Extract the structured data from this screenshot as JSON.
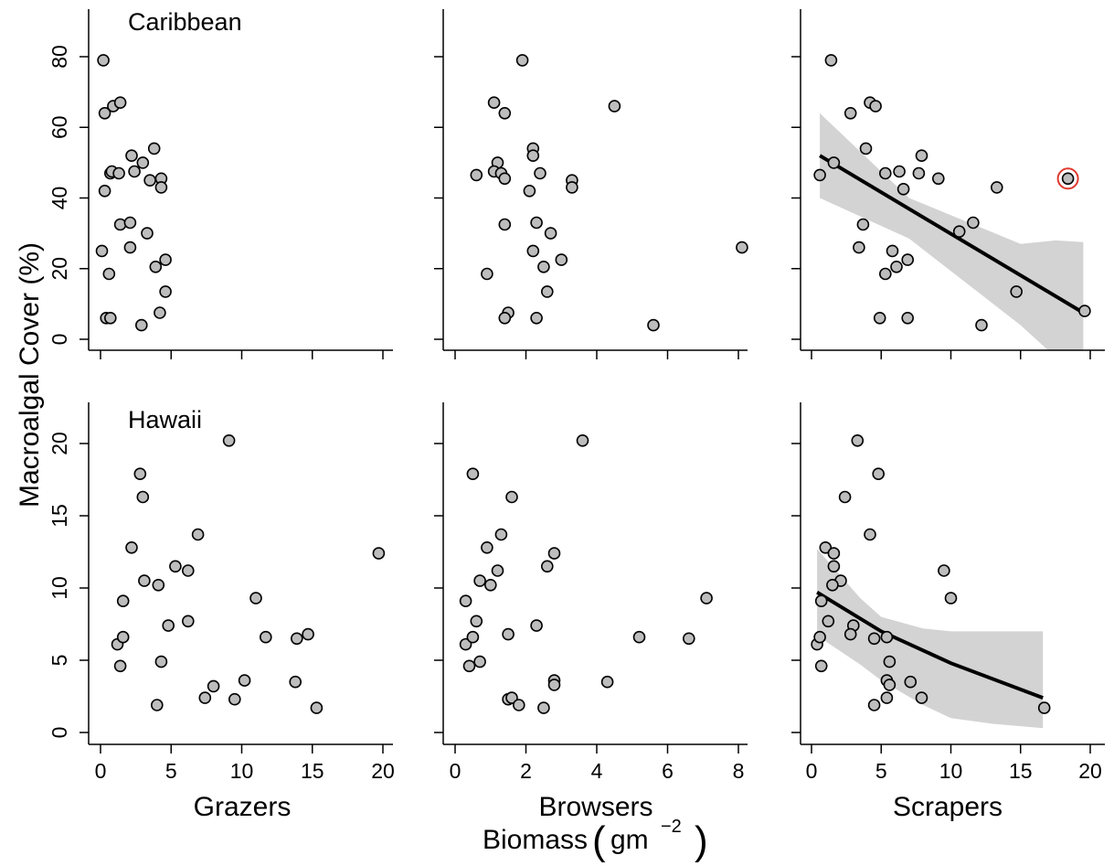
{
  "figure": {
    "ylabel": "Macroalgal Cover (%)",
    "xlabel_main": "Biomass",
    "xlabel_unit": "gm",
    "xlabel_unit_exp": "−2",
    "x_titles": [
      "Grazers",
      "Browsers",
      "Scrapers"
    ],
    "regions": [
      "Caribbean",
      "Hawaii"
    ]
  },
  "chart_data": [
    {
      "type": "scatter",
      "region": "Caribbean",
      "xlabel": "Grazers",
      "xlim": [
        0,
        20
      ],
      "ylim": [
        0,
        80
      ],
      "xticks": [
        0,
        5,
        10,
        15,
        20
      ],
      "yticks": [
        0,
        20,
        40,
        60,
        80
      ],
      "points": [
        [
          0.2,
          79
        ],
        [
          0.3,
          64
        ],
        [
          0.9,
          66
        ],
        [
          1.4,
          67
        ],
        [
          0.3,
          42
        ],
        [
          0.7,
          47
        ],
        [
          0.8,
          47.5
        ],
        [
          1.3,
          47
        ],
        [
          2.2,
          52
        ],
        [
          2.4,
          47.5
        ],
        [
          3.0,
          50
        ],
        [
          3.5,
          45
        ],
        [
          3.8,
          54
        ],
        [
          4.3,
          45.5
        ],
        [
          4.3,
          43
        ],
        [
          1.4,
          32.5
        ],
        [
          2.1,
          33
        ],
        [
          3.3,
          30
        ],
        [
          0.1,
          25
        ],
        [
          2.1,
          26
        ],
        [
          3.9,
          20.5
        ],
        [
          4.6,
          22.5
        ],
        [
          0.6,
          18.5
        ],
        [
          4.6,
          13.5
        ],
        [
          0.4,
          6
        ],
        [
          0.7,
          6
        ],
        [
          4.2,
          7.5
        ],
        [
          2.9,
          4
        ]
      ],
      "trend": null
    },
    {
      "type": "scatter",
      "region": "Caribbean",
      "xlabel": "Browsers",
      "xlim": [
        0,
        8
      ],
      "ylim": [
        0,
        80
      ],
      "xticks": [
        0,
        2,
        4,
        6,
        8
      ],
      "yticks": [
        0,
        20,
        40,
        60,
        80
      ],
      "points": [
        [
          1.9,
          79
        ],
        [
          4.5,
          66
        ],
        [
          1.1,
          67
        ],
        [
          1.4,
          64
        ],
        [
          2.2,
          54
        ],
        [
          2.2,
          52
        ],
        [
          1.2,
          50
        ],
        [
          1.1,
          47.5
        ],
        [
          0.6,
          46.5
        ],
        [
          1.3,
          47
        ],
        [
          2.4,
          47
        ],
        [
          1.4,
          45.5
        ],
        [
          3.3,
          45
        ],
        [
          3.3,
          43
        ],
        [
          2.1,
          42
        ],
        [
          1.4,
          32.5
        ],
        [
          2.3,
          33
        ],
        [
          2.7,
          30
        ],
        [
          2.2,
          25
        ],
        [
          3.0,
          22.5
        ],
        [
          2.5,
          20.5
        ],
        [
          0.9,
          18.5
        ],
        [
          2.6,
          13.5
        ],
        [
          1.5,
          7.5
        ],
        [
          1.4,
          6
        ],
        [
          2.3,
          6
        ],
        [
          5.6,
          4
        ],
        [
          8.1,
          26
        ]
      ],
      "trend": null
    },
    {
      "type": "scatter",
      "region": "Caribbean",
      "xlabel": "Scrapers",
      "xlim": [
        0,
        20
      ],
      "ylim": [
        0,
        80
      ],
      "xticks": [
        0,
        5,
        10,
        15,
        20
      ],
      "yticks": [
        0,
        20,
        40,
        60,
        80
      ],
      "points": [
        [
          1.4,
          79
        ],
        [
          2.8,
          64
        ],
        [
          4.2,
          67
        ],
        [
          4.6,
          66
        ],
        [
          3.9,
          54
        ],
        [
          7.9,
          52
        ],
        [
          1.6,
          50
        ],
        [
          0.6,
          46.5
        ],
        [
          5.3,
          47
        ],
        [
          6.3,
          47.5
        ],
        [
          7.7,
          47
        ],
        [
          9.1,
          45.5
        ],
        [
          6.6,
          42.5
        ],
        [
          13.3,
          43
        ],
        [
          3.7,
          32.5
        ],
        [
          11.6,
          33
        ],
        [
          10.6,
          30.5
        ],
        [
          3.4,
          26
        ],
        [
          5.8,
          25
        ],
        [
          6.9,
          22.5
        ],
        [
          6.1,
          20.5
        ],
        [
          5.3,
          18.5
        ],
        [
          14.7,
          13.5
        ],
        [
          4.9,
          6
        ],
        [
          6.9,
          6
        ],
        [
          12.2,
          4
        ],
        [
          19.6,
          8
        ]
      ],
      "highlight": [
        18.4,
        45.5
      ],
      "trend": {
        "x": [
          0.6,
          19.5
        ],
        "y": [
          52,
          7.5
        ]
      },
      "band": {
        "x": [
          0.6,
          7,
          15,
          17.5,
          19.5
        ],
        "lower": [
          40,
          28.5,
          4,
          -5,
          -5
        ],
        "upper": [
          64,
          40,
          27,
          28,
          27.5
        ]
      }
    },
    {
      "type": "scatter",
      "region": "Hawaii",
      "xlabel": "Grazers",
      "xlim": [
        0,
        20
      ],
      "ylim": [
        0,
        20
      ],
      "xticks": [
        0,
        5,
        10,
        15,
        20
      ],
      "yticks": [
        0,
        5,
        10,
        15,
        20
      ],
      "points": [
        [
          9.1,
          20.2
        ],
        [
          2.8,
          17.9
        ],
        [
          3.0,
          16.3
        ],
        [
          6.9,
          13.7
        ],
        [
          2.2,
          12.8
        ],
        [
          19.7,
          12.4
        ],
        [
          5.3,
          11.5
        ],
        [
          6.2,
          11.2
        ],
        [
          3.1,
          10.5
        ],
        [
          4.1,
          10.2
        ],
        [
          11.0,
          9.3
        ],
        [
          1.6,
          9.1
        ],
        [
          6.2,
          7.7
        ],
        [
          4.8,
          7.4
        ],
        [
          1.2,
          6.1
        ],
        [
          1.6,
          6.6
        ],
        [
          11.7,
          6.6
        ],
        [
          13.9,
          6.5
        ],
        [
          14.7,
          6.8
        ],
        [
          1.4,
          4.6
        ],
        [
          4.3,
          4.9
        ],
        [
          10.2,
          3.6
        ],
        [
          13.8,
          3.5
        ],
        [
          8.0,
          3.2
        ],
        [
          7.4,
          2.4
        ],
        [
          9.5,
          2.3
        ],
        [
          4.0,
          1.9
        ],
        [
          15.3,
          1.7
        ]
      ],
      "trend": null
    },
    {
      "type": "scatter",
      "region": "Hawaii",
      "xlabel": "Browsers",
      "xlim": [
        0,
        8
      ],
      "ylim": [
        0,
        20
      ],
      "xticks": [
        0,
        2,
        4,
        6,
        8
      ],
      "yticks": [
        0,
        5,
        10,
        15,
        20
      ],
      "points": [
        [
          3.6,
          20.2
        ],
        [
          0.5,
          17.9
        ],
        [
          1.6,
          16.3
        ],
        [
          1.3,
          13.7
        ],
        [
          0.9,
          12.8
        ],
        [
          2.8,
          12.4
        ],
        [
          2.6,
          11.5
        ],
        [
          1.2,
          11.2
        ],
        [
          0.7,
          10.5
        ],
        [
          1.0,
          10.2
        ],
        [
          0.3,
          9.1
        ],
        [
          7.1,
          9.3
        ],
        [
          0.6,
          7.7
        ],
        [
          2.3,
          7.4
        ],
        [
          0.3,
          6.1
        ],
        [
          0.5,
          6.6
        ],
        [
          1.5,
          6.8
        ],
        [
          5.2,
          6.6
        ],
        [
          6.6,
          6.5
        ],
        [
          0.4,
          4.6
        ],
        [
          0.7,
          4.9
        ],
        [
          2.8,
          3.6
        ],
        [
          2.8,
          3.3
        ],
        [
          4.3,
          3.5
        ],
        [
          1.5,
          2.3
        ],
        [
          1.6,
          2.4
        ],
        [
          1.8,
          1.9
        ],
        [
          2.5,
          1.7
        ]
      ],
      "trend": null
    },
    {
      "type": "scatter",
      "region": "Hawaii",
      "xlabel": "Scrapers",
      "xlim": [
        0,
        20
      ],
      "ylim": [
        0,
        20
      ],
      "xticks": [
        0,
        5,
        10,
        15,
        20
      ],
      "yticks": [
        0,
        5,
        10,
        15,
        20
      ],
      "points": [
        [
          3.3,
          20.2
        ],
        [
          4.8,
          17.9
        ],
        [
          2.4,
          16.3
        ],
        [
          4.2,
          13.7
        ],
        [
          1.0,
          12.8
        ],
        [
          1.6,
          12.4
        ],
        [
          1.6,
          11.5
        ],
        [
          9.5,
          11.2
        ],
        [
          2.1,
          10.5
        ],
        [
          1.5,
          10.2
        ],
        [
          0.7,
          9.1
        ],
        [
          10.0,
          9.3
        ],
        [
          1.2,
          7.7
        ],
        [
          3.0,
          7.4
        ],
        [
          0.4,
          6.1
        ],
        [
          0.6,
          6.6
        ],
        [
          2.8,
          6.8
        ],
        [
          4.5,
          6.5
        ],
        [
          5.4,
          6.6
        ],
        [
          0.7,
          4.6
        ],
        [
          5.6,
          4.9
        ],
        [
          5.4,
          3.6
        ],
        [
          5.6,
          3.3
        ],
        [
          7.1,
          3.5
        ],
        [
          5.4,
          2.4
        ],
        [
          7.9,
          2.4
        ],
        [
          4.5,
          1.9
        ],
        [
          16.7,
          1.7
        ]
      ],
      "trend": {
        "x": [
          0.4,
          5,
          10,
          16.6
        ],
        "y": [
          9.7,
          7.0,
          4.8,
          2.4
        ]
      },
      "band": {
        "x": [
          0.4,
          3.5,
          5,
          8,
          10,
          13,
          16.6
        ],
        "lower": [
          6.7,
          4.7,
          3.6,
          1.9,
          1.0,
          0.6,
          0.3
        ],
        "upper": [
          12.7,
          9.3,
          8.0,
          7.2,
          7.0,
          7.0,
          7.0
        ]
      }
    }
  ]
}
